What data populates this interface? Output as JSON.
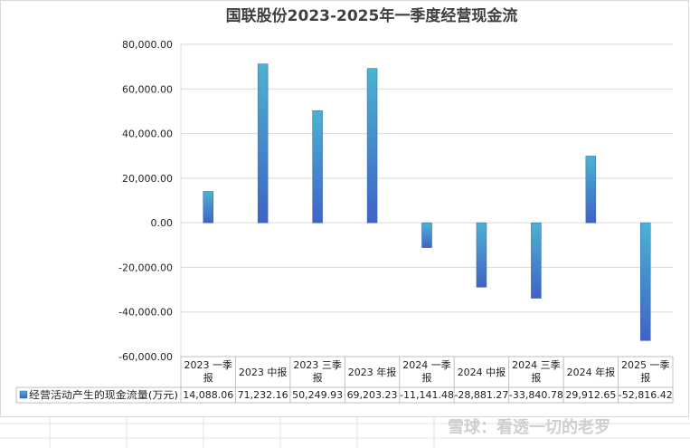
{
  "chart_data": {
    "type": "bar",
    "title": "国联股份2023-2025年一季度经营现金流",
    "categories": [
      [
        "2023 一季",
        "报"
      ],
      [
        "2023 中报"
      ],
      [
        "2023 三季",
        "报"
      ],
      [
        "2023 年报"
      ],
      [
        "2024 一季",
        "报"
      ],
      [
        "2024 中报"
      ],
      [
        "2024 三季",
        "报"
      ],
      [
        "2024 年报"
      ],
      [
        "2025 一季",
        "报"
      ]
    ],
    "series": [
      {
        "name": "经营活动产生的现金流量(万元)",
        "values": [
          14088.06,
          71232.16,
          50249.93,
          69203.23,
          -11141.48,
          -28881.27,
          -33840.78,
          29912.65,
          -52816.42
        ],
        "labels": [
          "14,088.06",
          "71,232.16",
          "50,249.93",
          "69,203.23",
          "-11,141.48",
          "-28,881.27",
          "-33,840.78",
          "29,912.65",
          "-52,816.42"
        ]
      }
    ],
    "yticks": [
      "80,000.00",
      "60,000.00",
      "40,000.00",
      "20,000.00",
      "0.00",
      "-20,000.00",
      "-40,000.00",
      "-60,000.00"
    ],
    "ytick_values": [
      80000,
      60000,
      40000,
      20000,
      0,
      -20000,
      -40000,
      -60000
    ],
    "ylim": [
      -60000,
      80000
    ],
    "grid": true,
    "legend": "bottom-left, inside data table",
    "colors": {
      "bar_top": "#4bb3cf",
      "bar_bottom": "#3f63c6",
      "grid": "#d9d9d9"
    }
  },
  "watermark": {
    "text": "雪球：看透一切的老罗"
  }
}
